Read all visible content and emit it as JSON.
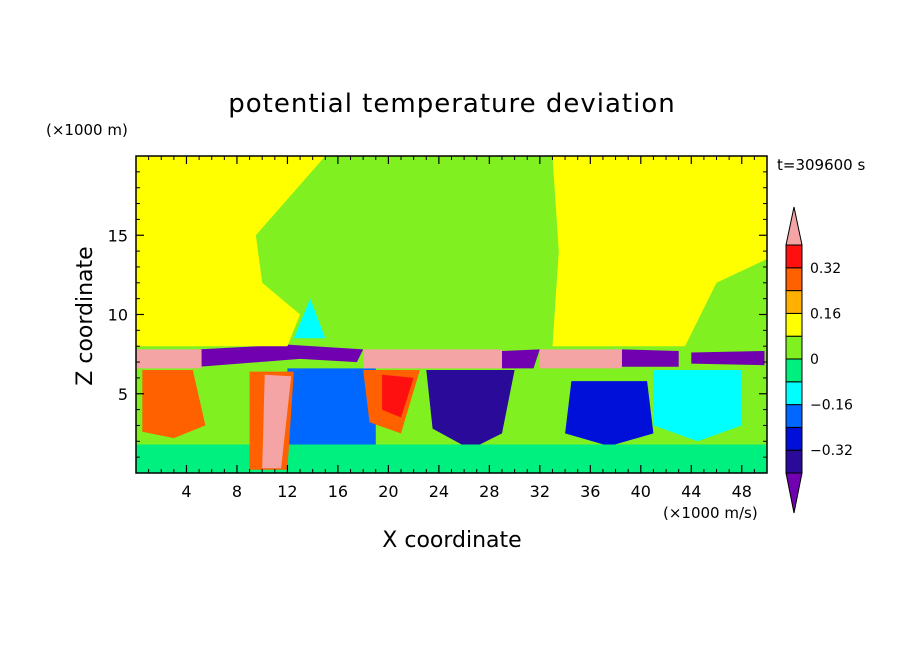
{
  "chart_data": {
    "type": "heatmap",
    "title": "potential temperature deviation",
    "xlabel": "X coordinate",
    "ylabel": "Z coordinate",
    "x_unit": "(×1000 m/s)",
    "y_unit": "(×1000 m)",
    "time_label": "t=309600 s",
    "xlim": [
      0,
      50
    ],
    "ylim": [
      0,
      20
    ],
    "x_ticks": [
      4,
      8,
      12,
      16,
      20,
      24,
      28,
      32,
      36,
      40,
      44,
      48
    ],
    "y_ticks": [
      5,
      10,
      15
    ],
    "colorbar": {
      "levels": [
        -0.48,
        -0.4,
        -0.32,
        -0.24,
        -0.16,
        -0.08,
        0,
        0.08,
        0.16,
        0.24,
        0.32,
        0.4
      ],
      "labeled": [
        0.32,
        0.16,
        0,
        -0.16,
        -0.32
      ],
      "colors": [
        "#7000b0",
        "#2a0a98",
        "#0010d8",
        "#0068ff",
        "#00ffff",
        "#00f080",
        "#80f020",
        "#ffff00",
        "#ffb000",
        "#ff6000",
        "#ff1010",
        "#f4a4a4"
      ]
    },
    "field": [
      {
        "level": -0.48,
        "region": [
          [
            5.0,
            7.8
          ],
          [
            12.0,
            8.1
          ],
          [
            18.0,
            7.8
          ],
          [
            17.5,
            7.0
          ],
          [
            13.0,
            7.2
          ],
          [
            5.0,
            6.7
          ]
        ]
      },
      {
        "level": -0.48,
        "region": [
          [
            29.0,
            7.7
          ],
          [
            32.0,
            7.8
          ],
          [
            31.5,
            6.6
          ],
          [
            29.0,
            6.6
          ]
        ]
      },
      {
        "level": -0.48,
        "region": [
          [
            38.5,
            7.8
          ],
          [
            43.0,
            7.7
          ],
          [
            43.0,
            6.7
          ],
          [
            38.5,
            6.7
          ]
        ]
      },
      {
        "level": -0.48,
        "region": [
          [
            44.0,
            7.6
          ],
          [
            49.8,
            7.7
          ],
          [
            49.8,
            6.8
          ],
          [
            44.0,
            6.9
          ]
        ]
      },
      {
        "level": -0.48,
        "region": [
          [
            13.5,
            6.3
          ],
          [
            17.0,
            6.5
          ],
          [
            17.5,
            4.6
          ],
          [
            15.0,
            3.0
          ],
          [
            18.0,
            1.5
          ],
          [
            16.0,
            1.0
          ],
          [
            13.0,
            2.0
          ],
          [
            13.5,
            4.2
          ]
        ]
      },
      {
        "level": -0.48,
        "region": [
          [
            25.0,
            6.5
          ],
          [
            28.5,
            6.5
          ],
          [
            28.0,
            3.5
          ],
          [
            26.5,
            2.5
          ],
          [
            25.0,
            3.5
          ]
        ]
      },
      {
        "level": -0.48,
        "region": [
          [
            36.0,
            5.2
          ],
          [
            39.5,
            5.0
          ],
          [
            40.0,
            3.2
          ],
          [
            37.5,
            2.5
          ],
          [
            35.5,
            3.2
          ]
        ]
      },
      {
        "level": -0.4,
        "region": [
          [
            23.0,
            6.5
          ],
          [
            30.0,
            6.5
          ],
          [
            29.0,
            2.5
          ],
          [
            26.5,
            1.5
          ],
          [
            23.5,
            2.8
          ]
        ]
      },
      {
        "level": -0.32,
        "region": [
          [
            34.5,
            5.8
          ],
          [
            40.5,
            5.8
          ],
          [
            41.0,
            2.5
          ],
          [
            37.5,
            1.7
          ],
          [
            34.0,
            2.5
          ]
        ]
      },
      {
        "level": -0.24,
        "region": [
          [
            12.0,
            6.6
          ],
          [
            19.0,
            6.6
          ],
          [
            19.0,
            1.2
          ],
          [
            15.0,
            0.5
          ],
          [
            12.0,
            1.5
          ]
        ]
      },
      {
        "level": -0.16,
        "region": [
          [
            41.0,
            6.5
          ],
          [
            48.0,
            6.5
          ],
          [
            48.0,
            3.0
          ],
          [
            44.5,
            2.0
          ],
          [
            41.0,
            3.0
          ]
        ]
      },
      {
        "level": -0.08,
        "region": [
          [
            0.0,
            1.8
          ],
          [
            50.0,
            1.8
          ],
          [
            50.0,
            0.0
          ],
          [
            0.0,
            0.0
          ]
        ]
      },
      {
        "level": 0.24,
        "region": [
          [
            0.5,
            6.5
          ],
          [
            4.5,
            6.5
          ],
          [
            5.5,
            3.0
          ],
          [
            3.0,
            2.2
          ],
          [
            0.5,
            2.6
          ]
        ]
      },
      {
        "level": 0.24,
        "region": [
          [
            9.0,
            6.4
          ],
          [
            12.5,
            6.4
          ],
          [
            12.0,
            0.2
          ],
          [
            9.0,
            0.2
          ]
        ]
      },
      {
        "level": 0.24,
        "region": [
          [
            18.0,
            6.5
          ],
          [
            22.5,
            6.5
          ],
          [
            21.0,
            2.5
          ],
          [
            18.5,
            3.2
          ]
        ]
      },
      {
        "level": 0.32,
        "region": [
          [
            19.5,
            6.2
          ],
          [
            22.0,
            6.0
          ],
          [
            21.0,
            3.5
          ],
          [
            19.5,
            4.0
          ]
        ]
      },
      {
        "level": 0.4,
        "region": [
          [
            10.2,
            6.2
          ],
          [
            12.3,
            6.1
          ],
          [
            11.5,
            0.3
          ],
          [
            10.0,
            0.3
          ]
        ]
      },
      {
        "level": 0.4,
        "region": [
          [
            0.0,
            7.8
          ],
          [
            5.2,
            7.8
          ],
          [
            5.2,
            6.6
          ],
          [
            0.0,
            6.6
          ]
        ]
      },
      {
        "level": 0.4,
        "region": [
          [
            18.0,
            7.8
          ],
          [
            29.0,
            7.8
          ],
          [
            29.0,
            6.6
          ],
          [
            18.0,
            6.6
          ]
        ]
      },
      {
        "level": 0.4,
        "region": [
          [
            32.0,
            7.8
          ],
          [
            38.5,
            7.8
          ],
          [
            38.5,
            6.6
          ],
          [
            32.0,
            6.6
          ]
        ]
      },
      {
        "level": 0.08,
        "region": [
          [
            0.0,
            20.0
          ],
          [
            15.0,
            20.0
          ],
          [
            9.5,
            15.0
          ],
          [
            10.0,
            12.0
          ],
          [
            13.0,
            10.0
          ],
          [
            12.0,
            8.0
          ],
          [
            0.0,
            8.0
          ]
        ]
      },
      {
        "level": 0.08,
        "region": [
          [
            33.0,
            20.0
          ],
          [
            50.0,
            20.0
          ],
          [
            50.0,
            13.5
          ],
          [
            46.0,
            12.0
          ],
          [
            43.5,
            8.0
          ],
          [
            33.0,
            8.0
          ],
          [
            33.5,
            14.0
          ]
        ]
      },
      {
        "level": -0.16,
        "region": [
          [
            12.5,
            8.5
          ],
          [
            13.8,
            11.0
          ],
          [
            15.0,
            8.5
          ]
        ]
      }
    ]
  }
}
